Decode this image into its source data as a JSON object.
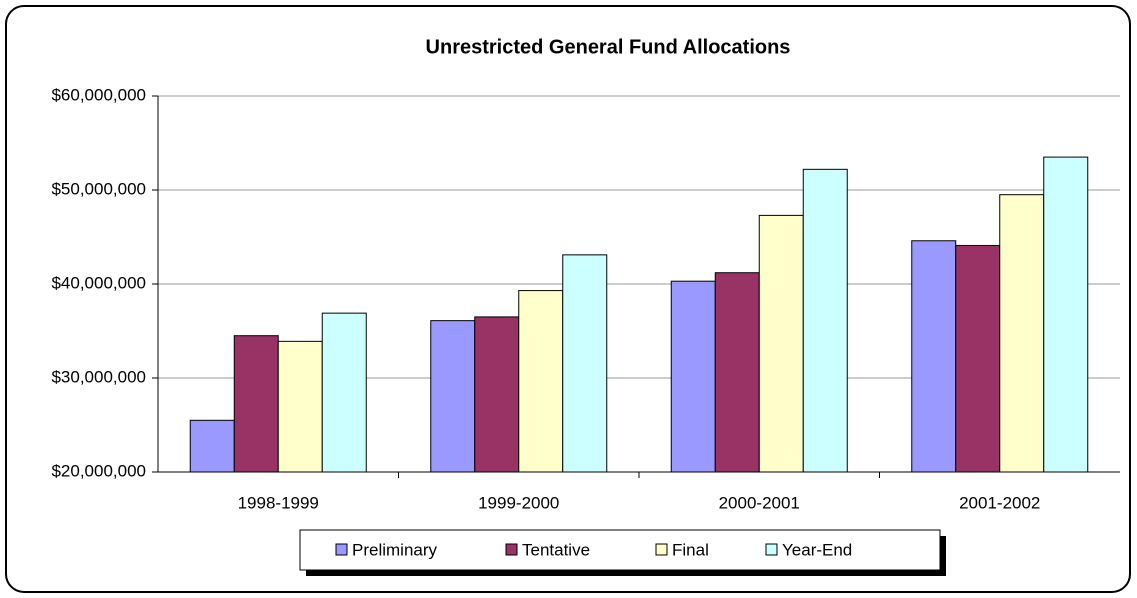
{
  "chart_data": {
    "type": "bar",
    "title": "Unrestricted General Fund Allocations",
    "categories": [
      "1998-1999",
      "1999-2000",
      "2000-2001",
      "2001-2002"
    ],
    "series": [
      {
        "name": "Preliminary",
        "color": "#9999ff",
        "values": [
          25500000,
          36100000,
          40300000,
          44600000
        ]
      },
      {
        "name": "Tentative",
        "color": "#993366",
        "values": [
          34500000,
          36500000,
          41200000,
          44100000
        ]
      },
      {
        "name": "Final",
        "color": "#ffffcc",
        "values": [
          33900000,
          39300000,
          47300000,
          49500000
        ]
      },
      {
        "name": "Year-End",
        "color": "#ccffff",
        "values": [
          36900000,
          43100000,
          52200000,
          53500000
        ]
      }
    ],
    "ylim": [
      20000000,
      60000000
    ],
    "yticks": [
      {
        "value": 20000000,
        "label": "$20,000,000"
      },
      {
        "value": 30000000,
        "label": "$30,000,000"
      },
      {
        "value": 40000000,
        "label": "$40,000,000"
      },
      {
        "value": 50000000,
        "label": "$50,000,000"
      },
      {
        "value": 60000000,
        "label": "$60,000,000"
      }
    ],
    "grid": true,
    "legend": "bottom"
  }
}
